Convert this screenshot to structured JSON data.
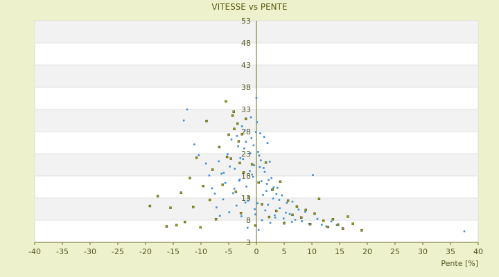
{
  "chart_data": {
    "type": "scatter",
    "title": "VITESSE vs PENTE",
    "xlabel": "Pente [%]",
    "ylabel": "",
    "xlim": [
      -40,
      40
    ],
    "ylim": [
      3,
      53
    ],
    "x_ticks": [
      -40,
      -35,
      -30,
      -25,
      -20,
      -15,
      -10,
      -5,
      0,
      5,
      10,
      15,
      20,
      25,
      30,
      35,
      40
    ],
    "y_ticks": [
      3,
      8,
      13,
      18,
      23,
      28,
      33,
      38,
      43,
      48,
      53
    ],
    "grid": "alternating horizontal bands",
    "legend": "none",
    "colors": {
      "series_1": "#3b8fd6",
      "series_2": "#9a9a1a",
      "axis": "#6b6b20",
      "band": "#f2f2f2"
    },
    "series": [
      {
        "color": "#3b8fd6",
        "x": [
          -13.1,
          -12.5,
          -11.2,
          -10.4,
          -9.1,
          -8.5,
          -8.0,
          -7.5,
          -7.2,
          -6.8,
          -6.3,
          -6.0,
          -5.6,
          -5.2,
          -4.9,
          -4.5,
          -4.2,
          -3.9,
          -3.6,
          -3.3,
          -3.0,
          -2.7,
          -2.4,
          -2.1,
          -1.8,
          -1.5,
          -1.2,
          -0.9,
          -0.6,
          -0.3,
          0.0,
          0.3,
          0.6,
          0.9,
          1.2,
          1.5,
          1.8,
          2.1,
          2.4,
          2.7,
          3.0,
          3.4,
          3.8,
          4.2,
          4.6,
          5.0,
          5.5,
          6.0,
          6.5,
          7.0,
          7.6,
          8.2,
          8.8,
          9.5,
          10.2,
          11.0,
          11.8,
          12.6,
          13.5,
          14.5,
          15.5,
          37.5,
          -2.6,
          -1.9,
          -1.1,
          -0.4,
          0.5,
          1.3,
          2.2,
          3.1,
          -3.5,
          -2.2,
          -0.8,
          0.8,
          1.9,
          2.8,
          4.1,
          5.3,
          -4.8,
          -3.1,
          -1.4,
          0.2,
          1.6,
          3.3,
          4.9,
          6.4,
          -5.9,
          -4.0,
          -2.0,
          -0.2,
          1.0,
          2.5,
          -1.6,
          0.4,
          -0.5,
          0.7,
          -2.9,
          3.6,
          -6.6,
          -1.0,
          1.4,
          2.0,
          -0.1,
          0.1
        ],
        "y": [
          30.5,
          33.0,
          25.1,
          22.7,
          20.8,
          18.1,
          15.2,
          14.0,
          10.9,
          21.3,
          18.5,
          12.7,
          16.4,
          22.9,
          9.8,
          26.2,
          14.1,
          19.6,
          11.3,
          24.7,
          17.2,
          8.9,
          21.8,
          28.3,
          15.6,
          12.4,
          19.1,
          26.5,
          17.8,
          10.5,
          35.6,
          23.4,
          20.0,
          16.8,
          13.7,
          18.9,
          14.6,
          11.5,
          21.2,
          17.5,
          12.9,
          8.6,
          15.3,
          10.7,
          13.6,
          7.5,
          11.9,
          9.4,
          12.2,
          8.1,
          10.4,
          7.8,
          9.9,
          7.2,
          18.2,
          8.3,
          7.0,
          6.6,
          7.7,
          6.9,
          6.2,
          5.5,
          29.2,
          25.7,
          23.1,
          20.4,
          22.6,
          19.8,
          17.1,
          15.4,
          27.0,
          24.2,
          18.3,
          21.5,
          16.2,
          14.8,
          12.6,
          9.7,
          20.1,
          16.9,
          13.2,
          11.8,
          10.2,
          9.1,
          8.4,
          7.6,
          18.7,
          15.1,
          12.0,
          9.3,
          8.0,
          7.4,
          6.3,
          5.8,
          24.9,
          27.6,
          22.0,
          13.9,
          9.0,
          31.2,
          26.8,
          25.4,
          27.9,
          30.1
        ]
      },
      {
        "color": "#9a9a1a",
        "x": [
          -19.2,
          -17.8,
          -16.2,
          -15.5,
          -14.4,
          -13.6,
          -12.9,
          -12.0,
          -11.4,
          -10.8,
          -10.1,
          -9.6,
          -9.0,
          -8.4,
          -7.9,
          -7.3,
          -6.7,
          -6.1,
          -5.5,
          -5.0,
          -4.6,
          -4.1,
          -3.7,
          -3.2,
          -2.8,
          -2.3,
          -1.9,
          -1.4,
          -0.8,
          -0.2,
          0.4,
          1.0,
          1.7,
          2.3,
          2.9,
          3.6,
          4.3,
          5.0,
          5.7,
          6.5,
          7.3,
          8.1,
          8.9,
          9.7,
          10.5,
          11.3,
          12.1,
          12.9,
          13.8,
          14.7,
          15.6,
          16.5,
          17.4,
          19.0,
          -4.3,
          -3.4,
          -2.6,
          -5.3,
          -4.0,
          -3.0
        ],
        "y": [
          11.2,
          13.4,
          6.6,
          10.8,
          6.9,
          14.2,
          7.6,
          17.5,
          11.0,
          22.1,
          6.4,
          15.7,
          30.4,
          12.6,
          19.4,
          8.2,
          24.5,
          16.0,
          34.8,
          27.3,
          21.9,
          32.5,
          14.4,
          25.8,
          9.6,
          18.8,
          30.9,
          13.1,
          20.6,
          6.8,
          16.5,
          11.6,
          21.0,
          8.7,
          14.9,
          10.1,
          16.7,
          7.3,
          12.4,
          9.2,
          11.1,
          8.6,
          10.3,
          7.1,
          9.5,
          12.8,
          7.9,
          6.5,
          8.2,
          7.0,
          6.1,
          8.8,
          7.2,
          5.7,
          31.6,
          29.8,
          27.4,
          22.3,
          28.6,
          20.9
        ]
      }
    ]
  }
}
